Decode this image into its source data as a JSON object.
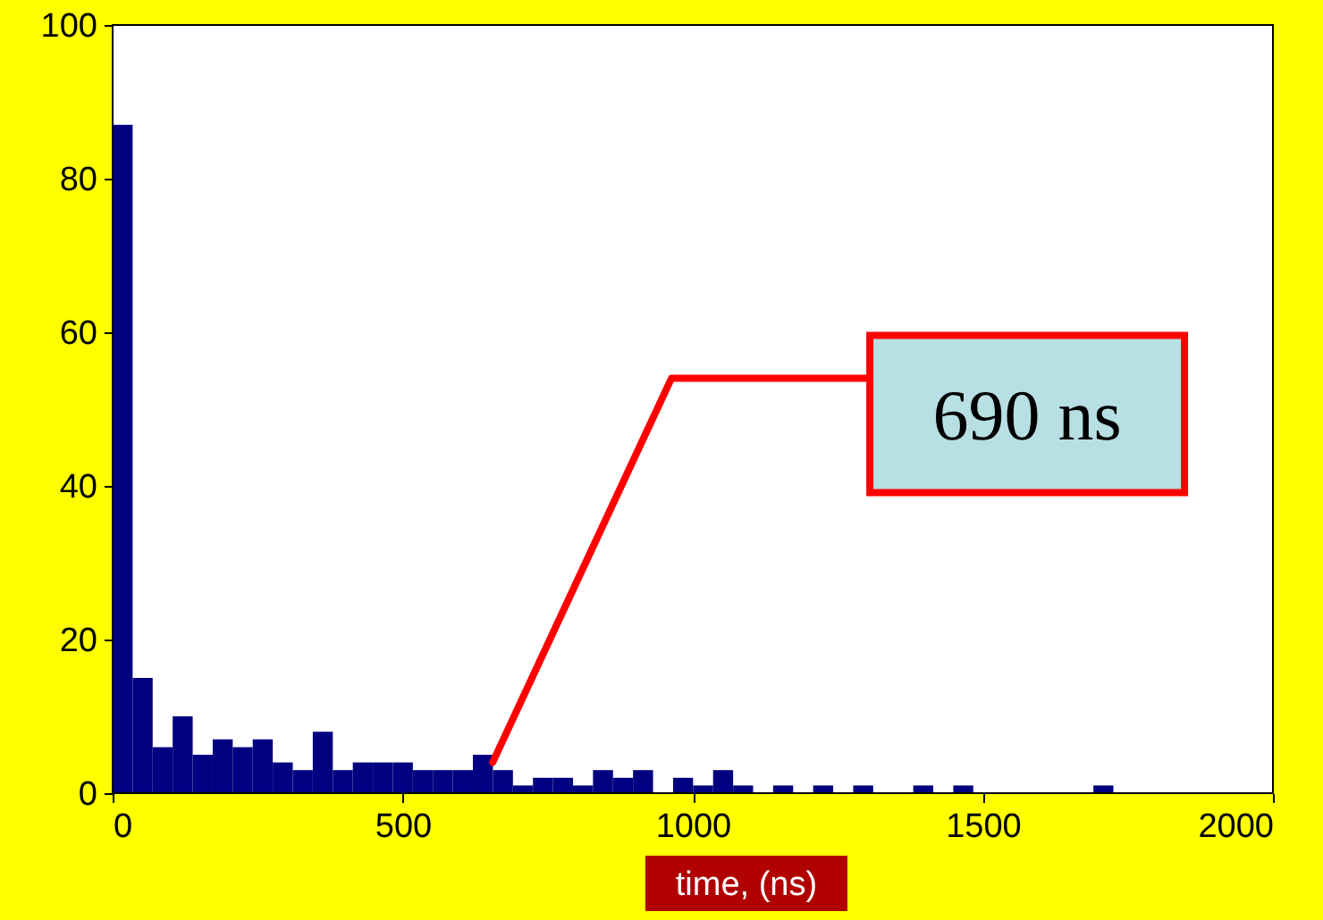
{
  "chart_data": {
    "type": "histogram",
    "xlabel": "time, (ns)",
    "bins": [
      0,
      34.5,
      69,
      103.5,
      138,
      172.5,
      207,
      241.5,
      276,
      310.5,
      345,
      379.5,
      414,
      448.5,
      483,
      517.5,
      552,
      586.5,
      621,
      655.5,
      690,
      724.5,
      759,
      793.5,
      828,
      862.5,
      897,
      931.5,
      966,
      1000.5,
      1035,
      1069.5,
      1104,
      1138.5,
      1173,
      1207.5,
      1242,
      1276.5,
      1311,
      1345.5,
      1380,
      1414.5,
      1449,
      1483.5,
      1518,
      1552.5,
      1587,
      1621.5,
      1656,
      1690.5,
      1725
    ],
    "values": [
      87,
      15,
      6,
      10,
      5,
      7,
      6,
      7,
      4,
      3,
      8,
      3,
      4,
      4,
      4,
      3,
      3,
      3,
      5,
      3,
      1,
      2,
      2,
      1,
      3,
      2,
      3,
      0,
      2,
      1,
      3,
      1,
      0,
      1,
      0,
      1,
      0,
      1,
      0,
      0,
      1,
      0,
      1,
      0,
      0,
      0,
      0,
      0,
      0,
      1
    ],
    "color": "#000080",
    "xlim": [
      0,
      2000
    ],
    "xticks": [
      0,
      500,
      1000,
      1500,
      2000
    ],
    "ylim": [
      0,
      100
    ],
    "yticks": [
      0,
      20,
      40,
      60,
      80,
      100
    ],
    "grid": false,
    "annotations": [
      {
        "text": "690 ns",
        "x": 655,
        "y": 4
      }
    ]
  }
}
